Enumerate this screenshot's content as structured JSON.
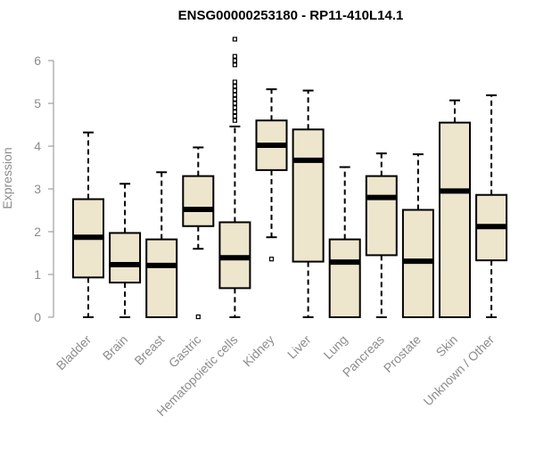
{
  "chart_data": {
    "type": "box",
    "title": "ENSG00000253180 - RP11-410L14.1",
    "xlabel": "",
    "ylabel": "Expression",
    "ylim": [
      0,
      6.5
    ],
    "yticks": [
      "0",
      "1",
      "2",
      "3",
      "4",
      "5",
      "6"
    ],
    "colors": {
      "box_fill": "#ede6cc",
      "stroke": "#000000",
      "axis": "#8c8c8c"
    },
    "categories": [
      "Bladder",
      "Brain",
      "Breast",
      "Gastric",
      "Hematopoietic cells",
      "Kidney",
      "Liver",
      "Lung",
      "Pancreas",
      "Prostate",
      "Skin",
      "Unknown / Other"
    ],
    "boxes": [
      {
        "category": "Bladder",
        "whisker_low": 0,
        "q1": 0.93,
        "median": 1.87,
        "q3": 2.76,
        "whisker_high": 4.32,
        "outliers": []
      },
      {
        "category": "Brain",
        "whisker_low": 0,
        "q1": 0.81,
        "median": 1.23,
        "q3": 1.97,
        "whisker_high": 3.12,
        "outliers": []
      },
      {
        "category": "Breast",
        "whisker_low": 0,
        "q1": 0,
        "median": 1.21,
        "q3": 1.82,
        "whisker_high": 3.39,
        "outliers": []
      },
      {
        "category": "Gastric",
        "whisker_low": 1.6,
        "q1": 2.13,
        "median": 2.52,
        "q3": 3.3,
        "whisker_high": 3.97,
        "outliers": [
          0.01
        ]
      },
      {
        "category": "Hematopoietic cells",
        "whisker_low": 0,
        "q1": 0.68,
        "median": 1.39,
        "q3": 2.22,
        "whisker_high": 4.46,
        "outliers": [
          4.6,
          4.7,
          4.8,
          4.9,
          5.0,
          5.1,
          5.2,
          5.3,
          5.4,
          5.5,
          5.9,
          6.0,
          6.1,
          6.5
        ]
      },
      {
        "category": "Kidney",
        "whisker_low": 1.87,
        "q1": 3.44,
        "median": 4.02,
        "q3": 4.6,
        "whisker_high": 5.33,
        "outliers": [
          1.36
        ]
      },
      {
        "category": "Liver",
        "whisker_low": 0,
        "q1": 1.3,
        "median": 3.67,
        "q3": 4.39,
        "whisker_high": 5.3,
        "outliers": []
      },
      {
        "category": "Lung",
        "whisker_low": 0,
        "q1": 0,
        "median": 1.29,
        "q3": 1.82,
        "whisker_high": 3.51,
        "outliers": []
      },
      {
        "category": "Pancreas",
        "whisker_low": 0,
        "q1": 1.45,
        "median": 2.8,
        "q3": 3.3,
        "whisker_high": 3.83,
        "outliers": []
      },
      {
        "category": "Prostate",
        "whisker_low": 0,
        "q1": 0,
        "median": 1.31,
        "q3": 2.51,
        "whisker_high": 3.81,
        "outliers": []
      },
      {
        "category": "Skin",
        "whisker_low": 0,
        "q1": 0,
        "median": 2.95,
        "q3": 4.55,
        "whisker_high": 5.07,
        "outliers": []
      },
      {
        "category": "Unknown / Other",
        "whisker_low": 0,
        "q1": 1.33,
        "median": 2.12,
        "q3": 2.86,
        "whisker_high": 5.19,
        "outliers": []
      }
    ],
    "grid": false,
    "legend": "none"
  }
}
